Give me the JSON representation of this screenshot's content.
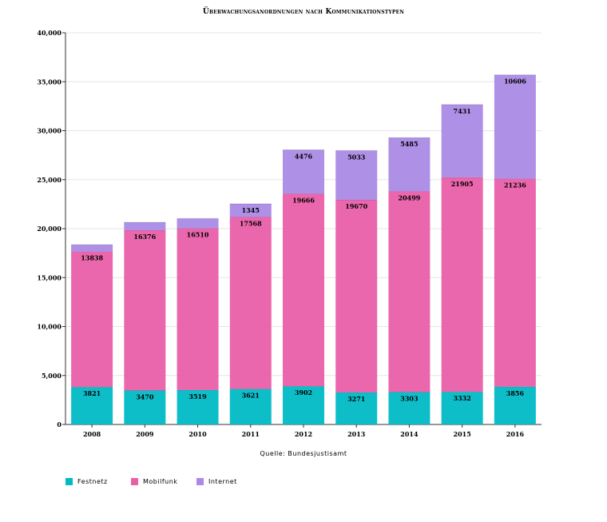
{
  "chart_data": {
    "type": "bar",
    "stacked": true,
    "title": "Überwachungsanordnungen nach Kommunikationstypen",
    "source": "Quelle: Bundesjustisamt",
    "categories": [
      "2008",
      "2009",
      "2010",
      "2011",
      "2012",
      "2013",
      "2014",
      "2015",
      "2016"
    ],
    "series": [
      {
        "name": "Festnetz",
        "color": "#00bac6",
        "values": [
          3821,
          3470,
          3519,
          3621,
          3902,
          3271,
          3303,
          3332,
          3856
        ],
        "labels": [
          "3821",
          "3470",
          "3519",
          "3621",
          "3902",
          "3271",
          "3303",
          "3332",
          "3856"
        ]
      },
      {
        "name": "Mobilfunk",
        "color": "#e95fa9",
        "values": [
          13838,
          16376,
          16510,
          17568,
          19666,
          19670,
          20499,
          21905,
          21236
        ],
        "labels": [
          "13838",
          "16376",
          "16510",
          "17568",
          "19666",
          "19670",
          "20499",
          "21905",
          "21236"
        ]
      },
      {
        "name": "Internet",
        "color": "#ab8ae6",
        "values": [
          700,
          800,
          1000,
          1345,
          4476,
          5033,
          5485,
          7431,
          10606
        ],
        "labels": [
          "",
          "",
          "",
          "1345",
          "4476",
          "5033",
          "5485",
          "7431",
          "10606"
        ]
      }
    ],
    "ylim": [
      0,
      40000
    ],
    "yticks": [
      0,
      5000,
      10000,
      15000,
      20000,
      25000,
      30000,
      35000,
      40000
    ],
    "ytick_labels": [
      "0",
      "5,000",
      "10,000",
      "15,000",
      "20,000",
      "25,000",
      "30,000",
      "35,000",
      "40,000"
    ],
    "grid": true,
    "legend_position": "bottom-left"
  }
}
